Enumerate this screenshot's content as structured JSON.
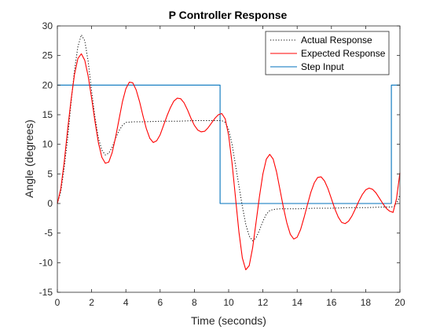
{
  "chart_data": {
    "type": "line",
    "title": "P Controller Response",
    "xlabel": "Time (seconds)",
    "ylabel": "Angle (degrees)",
    "xlim": [
      0,
      20
    ],
    "ylim": [
      -15,
      30
    ],
    "xticks": [
      0,
      2,
      4,
      6,
      8,
      10,
      12,
      14,
      16,
      18,
      20
    ],
    "yticks": [
      -15,
      -10,
      -5,
      0,
      5,
      10,
      15,
      20,
      25,
      30
    ],
    "grid": false,
    "legend_position": "top-right",
    "series": [
      {
        "name": "Actual Response",
        "style": "dotted",
        "color": "#000000",
        "points": [
          [
            0,
            0
          ],
          [
            0.2,
            2
          ],
          [
            0.4,
            6
          ],
          [
            0.6,
            11
          ],
          [
            0.8,
            17
          ],
          [
            1.0,
            22.5
          ],
          [
            1.2,
            26.5
          ],
          [
            1.4,
            28.5
          ],
          [
            1.6,
            27.5
          ],
          [
            1.8,
            24
          ],
          [
            2.0,
            19
          ],
          [
            2.2,
            14.5
          ],
          [
            2.4,
            11
          ],
          [
            2.6,
            9
          ],
          [
            2.8,
            8.2
          ],
          [
            3.0,
            8.5
          ],
          [
            3.2,
            9.5
          ],
          [
            3.4,
            11
          ],
          [
            3.6,
            12.3
          ],
          [
            3.8,
            13.2
          ],
          [
            4.0,
            13.7
          ],
          [
            4.4,
            13.8
          ],
          [
            5.0,
            13.8
          ],
          [
            6.0,
            13.9
          ],
          [
            7.0,
            13.9
          ],
          [
            8.0,
            14.0
          ],
          [
            9.0,
            14.0
          ],
          [
            9.4,
            14.0
          ],
          [
            9.6,
            14.0
          ],
          [
            9.8,
            13.7
          ],
          [
            10.0,
            12.5
          ],
          [
            10.2,
            10
          ],
          [
            10.4,
            6.5
          ],
          [
            10.6,
            3
          ],
          [
            10.8,
            -0.5
          ],
          [
            11.0,
            -3.5
          ],
          [
            11.2,
            -5.5
          ],
          [
            11.4,
            -6.3
          ],
          [
            11.6,
            -5.8
          ],
          [
            11.8,
            -4.5
          ],
          [
            12.0,
            -3
          ],
          [
            12.2,
            -1.8
          ],
          [
            12.4,
            -1.2
          ],
          [
            12.6,
            -1.0
          ],
          [
            13.0,
            -0.9
          ],
          [
            14.0,
            -0.9
          ],
          [
            15.0,
            -0.8
          ],
          [
            16.0,
            -0.8
          ],
          [
            17.0,
            -0.7
          ],
          [
            18.0,
            -0.7
          ],
          [
            19.0,
            -0.6
          ],
          [
            19.5,
            -0.6
          ],
          [
            19.7,
            -0.4
          ],
          [
            19.9,
            0.6
          ],
          [
            20.0,
            1.5
          ]
        ]
      },
      {
        "name": "Expected Response",
        "style": "solid",
        "color": "#ff0000",
        "points": [
          [
            0,
            0
          ],
          [
            0.2,
            2.5
          ],
          [
            0.4,
            7
          ],
          [
            0.6,
            12.5
          ],
          [
            0.8,
            17.5
          ],
          [
            1.0,
            21.8
          ],
          [
            1.2,
            24.5
          ],
          [
            1.4,
            25.3
          ],
          [
            1.6,
            24.2
          ],
          [
            1.8,
            21.5
          ],
          [
            2.0,
            17.8
          ],
          [
            2.2,
            13.8
          ],
          [
            2.4,
            10.2
          ],
          [
            2.6,
            7.8
          ],
          [
            2.8,
            6.8
          ],
          [
            3.0,
            7
          ],
          [
            3.2,
            8.6
          ],
          [
            3.4,
            11.2
          ],
          [
            3.6,
            14.2
          ],
          [
            3.8,
            17.2
          ],
          [
            4.0,
            19.4
          ],
          [
            4.2,
            20.5
          ],
          [
            4.4,
            20.4
          ],
          [
            4.6,
            19.2
          ],
          [
            4.8,
            17.2
          ],
          [
            5.0,
            14.8
          ],
          [
            5.2,
            12.6
          ],
          [
            5.4,
            11
          ],
          [
            5.6,
            10.3
          ],
          [
            5.8,
            10.6
          ],
          [
            6.0,
            11.6
          ],
          [
            6.2,
            13.2
          ],
          [
            6.4,
            14.8
          ],
          [
            6.6,
            16.2
          ],
          [
            6.8,
            17.3
          ],
          [
            7.0,
            17.8
          ],
          [
            7.2,
            17.7
          ],
          [
            7.4,
            17
          ],
          [
            7.6,
            15.8
          ],
          [
            7.8,
            14.4
          ],
          [
            8.0,
            13.2
          ],
          [
            8.2,
            12.4
          ],
          [
            8.4,
            12.1
          ],
          [
            8.6,
            12.2
          ],
          [
            8.8,
            12.8
          ],
          [
            9.0,
            13.6
          ],
          [
            9.2,
            14.4
          ],
          [
            9.4,
            15.0
          ],
          [
            9.6,
            15.2
          ],
          [
            9.8,
            14.3
          ],
          [
            10.0,
            11.5
          ],
          [
            10.2,
            6.8
          ],
          [
            10.4,
            1
          ],
          [
            10.6,
            -4.8
          ],
          [
            10.8,
            -9.2
          ],
          [
            11.0,
            -11.2
          ],
          [
            11.2,
            -10.5
          ],
          [
            11.4,
            -7.5
          ],
          [
            11.6,
            -3.2
          ],
          [
            11.8,
            1.2
          ],
          [
            12.0,
            5
          ],
          [
            12.2,
            7.5
          ],
          [
            12.4,
            8.3
          ],
          [
            12.6,
            7.5
          ],
          [
            12.8,
            5.3
          ],
          [
            13.0,
            2.3
          ],
          [
            13.2,
            -0.7
          ],
          [
            13.4,
            -3.3
          ],
          [
            13.6,
            -5.2
          ],
          [
            13.8,
            -6
          ],
          [
            14.0,
            -5.7
          ],
          [
            14.2,
            -4.4
          ],
          [
            14.4,
            -2.4
          ],
          [
            14.6,
            -0.2
          ],
          [
            14.8,
            1.9
          ],
          [
            15.0,
            3.5
          ],
          [
            15.2,
            4.4
          ],
          [
            15.4,
            4.5
          ],
          [
            15.6,
            3.8
          ],
          [
            15.8,
            2.5
          ],
          [
            16.0,
            0.8
          ],
          [
            16.2,
            -0.9
          ],
          [
            16.4,
            -2.3
          ],
          [
            16.6,
            -3.2
          ],
          [
            16.8,
            -3.4
          ],
          [
            17.0,
            -3
          ],
          [
            17.2,
            -2.1
          ],
          [
            17.4,
            -0.9
          ],
          [
            17.6,
            0.4
          ],
          [
            17.8,
            1.5
          ],
          [
            18.0,
            2.3
          ],
          [
            18.2,
            2.6
          ],
          [
            18.4,
            2.4
          ],
          [
            18.6,
            1.8
          ],
          [
            18.8,
            0.9
          ],
          [
            19.0,
            0
          ],
          [
            19.2,
            -0.8
          ],
          [
            19.4,
            -1.3
          ],
          [
            19.6,
            -1.5
          ],
          [
            19.8,
            0.8
          ],
          [
            20.0,
            5.2
          ]
        ]
      },
      {
        "name": "Step Input",
        "style": "solid",
        "color": "#0072bd",
        "points": [
          [
            0,
            20
          ],
          [
            9.5,
            20
          ],
          [
            9.5,
            0
          ],
          [
            19.5,
            0
          ],
          [
            19.5,
            20
          ],
          [
            20,
            20
          ]
        ]
      }
    ]
  }
}
